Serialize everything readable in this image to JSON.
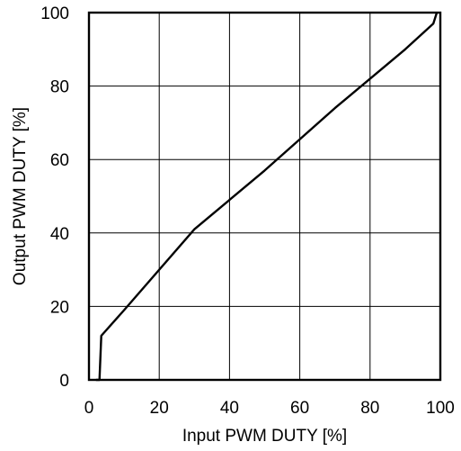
{
  "chart_data": {
    "type": "line",
    "title": "",
    "xlabel": "Input PWM DUTY [%]",
    "ylabel": "Output PWM DUTY [%]",
    "xlim": [
      0,
      100
    ],
    "ylim": [
      0,
      100
    ],
    "xticks": [
      "0",
      "20",
      "40",
      "60",
      "80",
      "100"
    ],
    "yticks": [
      "0",
      "20",
      "40",
      "60",
      "80",
      "100"
    ],
    "grid": true,
    "legend": "none",
    "series": [
      {
        "x": [
          2.0,
          3.0,
          3.5,
          10.0,
          30.0,
          50.0,
          70.0,
          90.0,
          98.0,
          99.0
        ],
        "y": [
          0.0,
          0.0,
          12.0,
          19.0,
          41.0,
          57.0,
          74.0,
          90.0,
          97.0,
          100.0
        ],
        "color": "#000000"
      }
    ]
  }
}
